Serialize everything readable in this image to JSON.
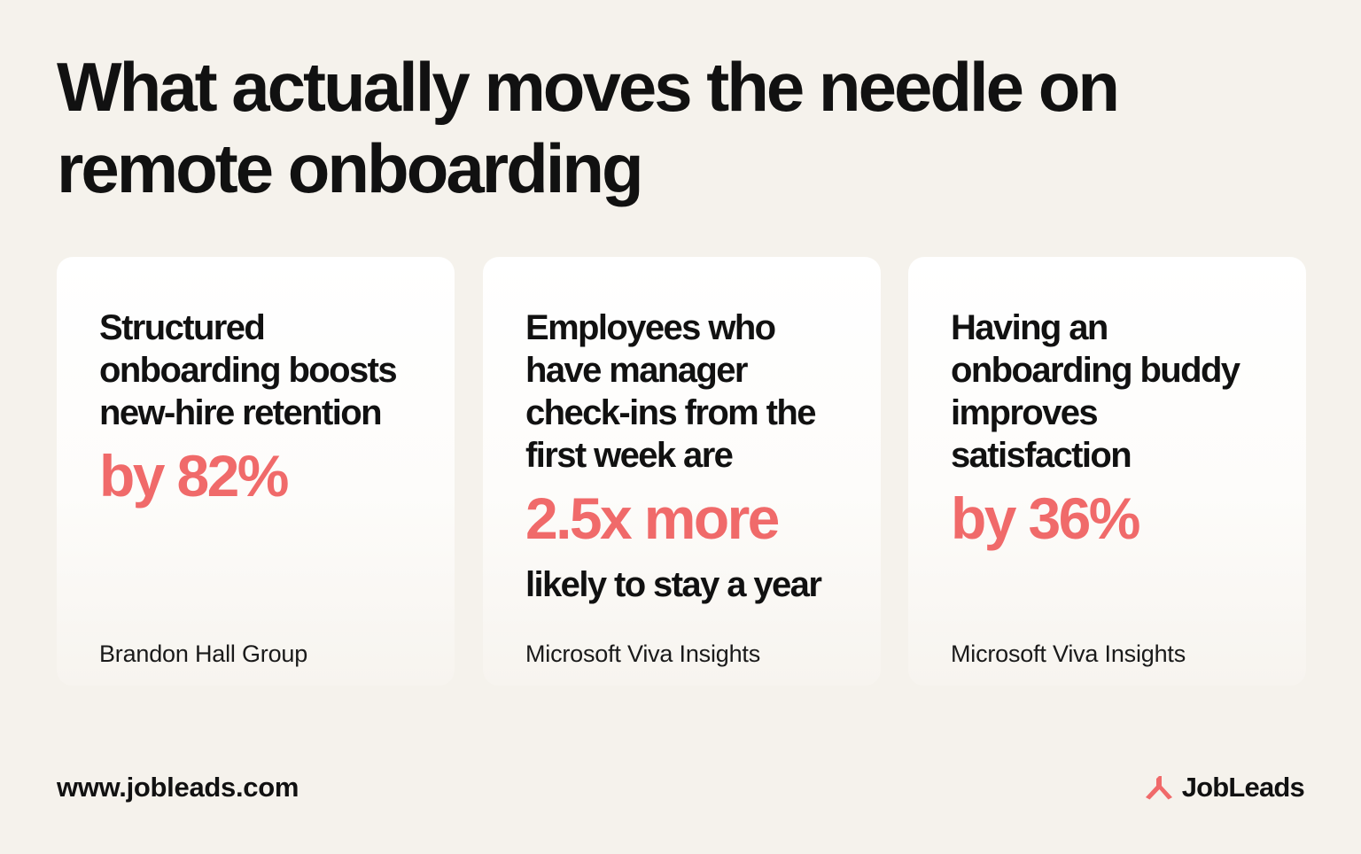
{
  "headline": {
    "line1": "What actually moves the needle on",
    "line2": "remote onboarding"
  },
  "cards": [
    {
      "lines": [
        "Structured",
        "onboarding boosts",
        "new-hire retention"
      ],
      "highlight": "by 82%",
      "after": "",
      "source": "Brandon Hall Group"
    },
    {
      "lines": [
        "Employees who",
        "have manager",
        "check-ins from the",
        "first week are"
      ],
      "highlight": "2.5x more",
      "after": "likely to stay a year",
      "source": "Microsoft Viva Insights"
    },
    {
      "lines": [
        "Having an",
        "onboarding buddy",
        "improves",
        "satisfaction"
      ],
      "highlight": "by 36%",
      "after": "",
      "source": "Microsoft Viva Insights"
    }
  ],
  "footer": {
    "url": "www.jobleads.com",
    "brand": "JobLeads",
    "brand_icon": "jobleads-logo-icon"
  },
  "colors": {
    "background": "#f5f2ec",
    "card": "#ffffff",
    "accent": "#f06a6a",
    "text": "#111111"
  }
}
